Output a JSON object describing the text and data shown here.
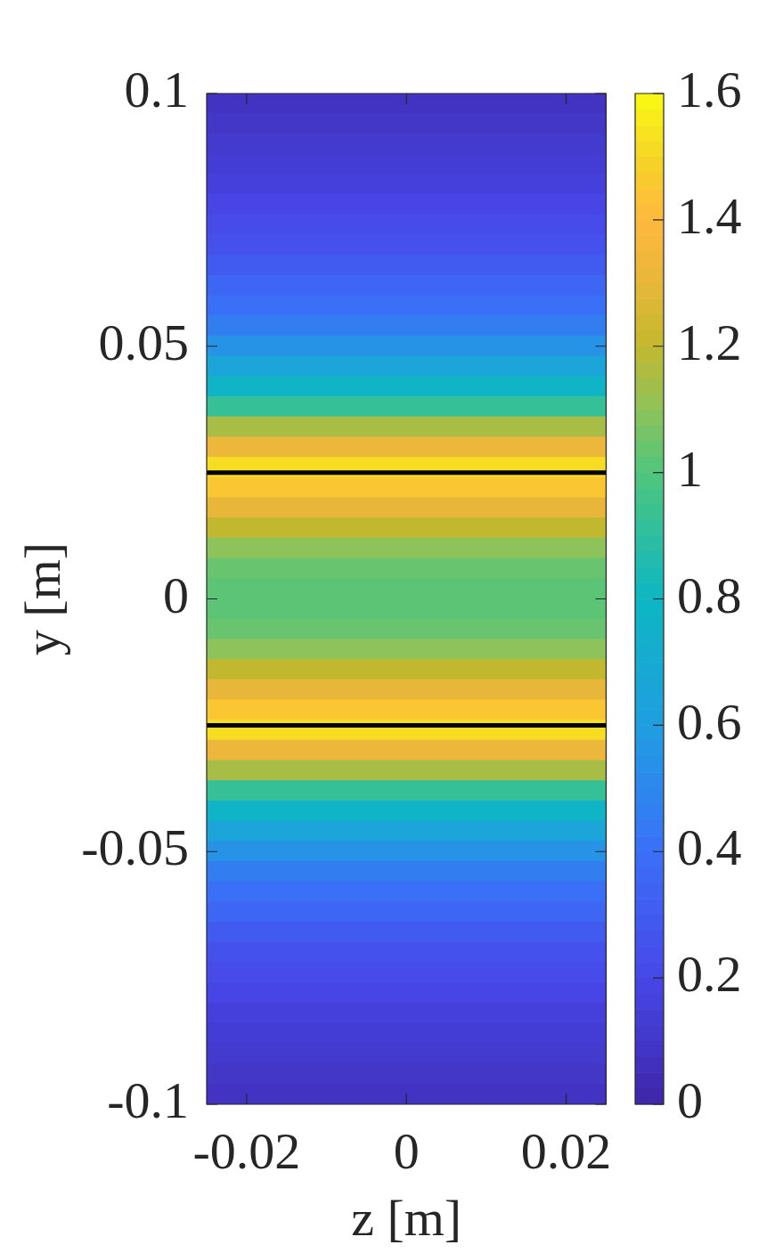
{
  "chart_data": {
    "type": "heatmap",
    "xlabel": "z [m]",
    "ylabel": "y [m]",
    "xlim": [
      -0.025,
      0.025
    ],
    "xticks": [
      -0.02,
      0,
      0.02
    ],
    "ylim": [
      -0.1,
      0.1
    ],
    "yticks": [
      -0.1,
      -0.05,
      0,
      0.05,
      0.1
    ],
    "cells": [
      [
        0.08
      ],
      [
        0.1
      ],
      [
        0.12
      ],
      [
        0.14
      ],
      [
        0.16
      ],
      [
        0.19
      ],
      [
        0.22
      ],
      [
        0.25
      ],
      [
        0.3
      ],
      [
        0.35
      ],
      [
        0.4
      ],
      [
        0.46
      ],
      [
        0.55
      ],
      [
        0.65
      ],
      [
        0.78
      ],
      [
        0.92
      ],
      [
        1.15
      ],
      [
        1.32
      ],
      [
        1.52
      ],
      [
        1.45
      ],
      [
        1.3
      ],
      [
        1.2
      ],
      [
        1.1
      ],
      [
        1.04
      ],
      [
        1.02
      ],
      [
        1.02
      ],
      [
        1.04
      ],
      [
        1.1
      ],
      [
        1.2
      ],
      [
        1.3
      ],
      [
        1.45
      ],
      [
        1.52
      ],
      [
        1.32
      ],
      [
        1.15
      ],
      [
        0.92
      ],
      [
        0.78
      ],
      [
        0.65
      ],
      [
        0.55
      ],
      [
        0.46
      ],
      [
        0.4
      ],
      [
        0.35
      ],
      [
        0.3
      ],
      [
        0.25
      ],
      [
        0.22
      ],
      [
        0.19
      ],
      [
        0.16
      ],
      [
        0.14
      ],
      [
        0.12
      ],
      [
        0.1
      ],
      [
        0.08
      ]
    ],
    "clim": [
      0,
      1.6
    ],
    "cticks": [
      0,
      0.2,
      0.4,
      0.6,
      0.8,
      1,
      1.2,
      1.4,
      1.6
    ],
    "ref_lines": [
      {
        "axis": "y",
        "value": 0.025,
        "color": "#000000"
      },
      {
        "axis": "y",
        "value": -0.025,
        "color": "#000000"
      }
    ]
  }
}
